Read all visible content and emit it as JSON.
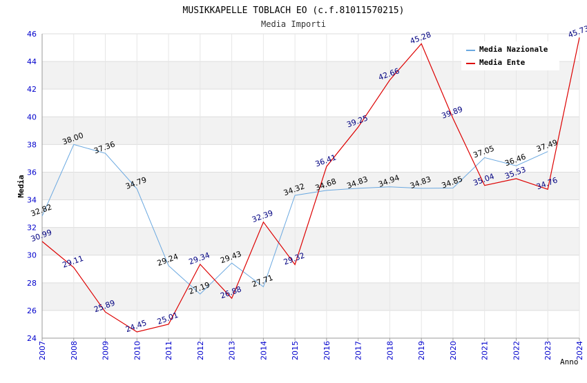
{
  "chart_data": {
    "type": "line",
    "title": "MUSIKKAPELLE TOBLACH EO (c.f.81011570215)",
    "subtitle": "Media Importi",
    "ylabel": "Media",
    "xlabel": "Anno",
    "ylim": [
      24,
      46
    ],
    "yticks": [
      "24",
      "26",
      "28",
      "30",
      "32",
      "34",
      "36",
      "38",
      "40",
      "42",
      "44",
      "46"
    ],
    "x": [
      "2007",
      "2008",
      "2009",
      "2010",
      "2011",
      "2012",
      "2013",
      "2014",
      "2015",
      "2016",
      "2017",
      "2018",
      "2019",
      "2020",
      "2021",
      "2022",
      "2023",
      "2024"
    ],
    "series": [
      {
        "name": "Media Nazionale",
        "color": "#6aa8e0",
        "values": [
          32.82,
          38.0,
          37.36,
          34.79,
          29.24,
          27.19,
          29.43,
          27.71,
          34.32,
          34.68,
          34.83,
          34.94,
          34.83,
          34.85,
          37.05,
          36.46,
          37.49,
          null
        ],
        "labels": [
          "32.82",
          "38.00",
          "37.36",
          "34.79",
          "29.24",
          "27.19",
          "29.43",
          "27.71",
          "34.32",
          "34.68",
          "34.83",
          "34.94",
          "34.83",
          "34.85",
          "37.05",
          "36.46",
          "37.49",
          null
        ]
      },
      {
        "name": "Media Ente",
        "color": "#dd0000",
        "values": [
          30.99,
          29.11,
          25.89,
          24.45,
          25.01,
          29.34,
          26.88,
          32.39,
          29.32,
          36.41,
          39.25,
          42.66,
          45.28,
          39.89,
          35.04,
          35.53,
          34.76,
          45.73
        ],
        "labels": [
          "30.99",
          "29.11",
          "25.89",
          "24.45",
          "25.01",
          "29.34",
          "26.88",
          "32.39",
          "29.32",
          "36.41",
          "39.25",
          "42.66",
          "45.28",
          "39.89",
          "35.04",
          "35.53",
          "34.76",
          "45.73"
        ]
      }
    ],
    "grid": true,
    "legend": "top-right"
  }
}
